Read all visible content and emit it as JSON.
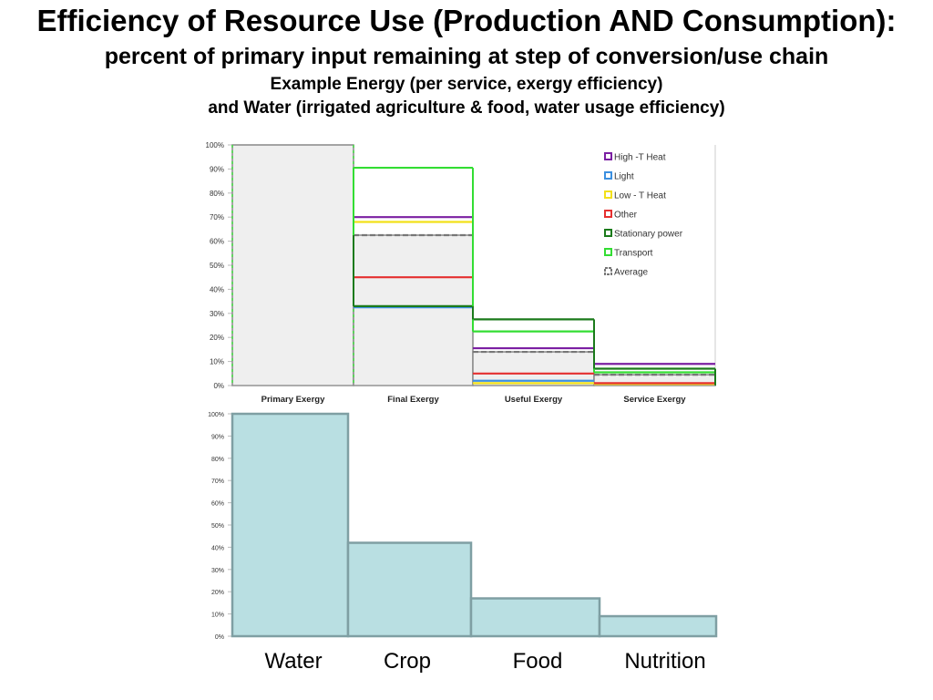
{
  "title": "Efficiency of Resource Use (Production AND Consumption):",
  "subtitle": "percent of primary input remaining at step of conversion/use chain",
  "subtitle2": "Example Energy (per service, exergy efficiency)",
  "subtitle3": "and Water (irrigated agriculture & food, water usage efficiency)",
  "chart_data": [
    {
      "type": "line",
      "categories": [
        "Primary Exergy",
        "Final Exergy",
        "Useful Exergy",
        "Service Exergy"
      ],
      "ylim": [
        0,
        100
      ],
      "yticks": [
        "0%",
        "10%",
        "20%",
        "30%",
        "40%",
        "50%",
        "60%",
        "70%",
        "80%",
        "90%",
        "100%"
      ],
      "legend_position": "top-right",
      "series": [
        {
          "name": "High -T Heat",
          "color": "#7b1fa2",
          "values": [
            100,
            70,
            15.5,
            9
          ]
        },
        {
          "name": "Light",
          "color": "#3b8fe0",
          "values": [
            100,
            32.5,
            2,
            0.5
          ]
        },
        {
          "name": "Low - T Heat",
          "color": "#f2e01a",
          "values": [
            100,
            68,
            1,
            0.3
          ]
        },
        {
          "name": "Other",
          "color": "#e53030",
          "values": [
            100,
            45,
            5,
            1
          ]
        },
        {
          "name": "Stationary power",
          "color": "#1b7a1b",
          "values": [
            100,
            33,
            27.5,
            7
          ]
        },
        {
          "name": "Transport",
          "color": "#33dd33",
          "values": [
            100,
            90.5,
            22.5,
            5.5
          ]
        },
        {
          "name": "Average",
          "color": "#777777",
          "dashed": true,
          "values": [
            100,
            62.5,
            14,
            4.5
          ]
        }
      ]
    },
    {
      "type": "bar",
      "categories": [
        "Water",
        "Crop",
        "Food",
        "Nutrition"
      ],
      "values": [
        100,
        42,
        17,
        9
      ],
      "ylim": [
        0,
        100
      ],
      "yticks": [
        "0%",
        "10%",
        "20%",
        "30%",
        "40%",
        "50%",
        "60%",
        "70%",
        "80%",
        "90%",
        "100%"
      ],
      "color": "#b9dfe2",
      "edge_color": "#7f9fa3"
    }
  ]
}
